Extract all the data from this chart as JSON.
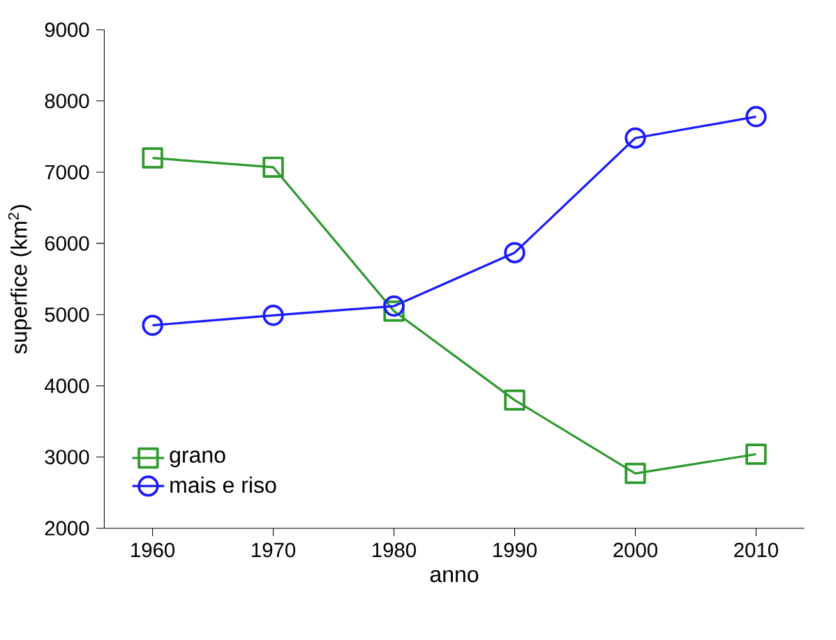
{
  "chart_data": {
    "type": "line",
    "xlabel": "anno",
    "ylabel": "superfice (km$^{2}$)",
    "x": [
      1960,
      1970,
      1980,
      1990,
      2000,
      2010
    ],
    "series": [
      {
        "name": "grano",
        "color": "#2e9a2e",
        "marker": "square",
        "values": [
          7200,
          7070,
          5050,
          3800,
          2770,
          3040
        ]
      },
      {
        "name": "mais e riso",
        "color": "#1a1aff",
        "marker": "circle",
        "values": [
          4850,
          4990,
          5120,
          5870,
          7480,
          7780
        ]
      }
    ],
    "xlim": [
      1956,
      2014
    ],
    "xticks": [
      1960,
      1970,
      1980,
      1990,
      2000,
      2010
    ],
    "ylim": [
      2000,
      9000
    ],
    "yticks": [
      2000,
      3000,
      4000,
      5000,
      6000,
      7000,
      8000,
      9000
    ],
    "legend": "bottom left",
    "grid": false,
    "line_style": "solid"
  }
}
